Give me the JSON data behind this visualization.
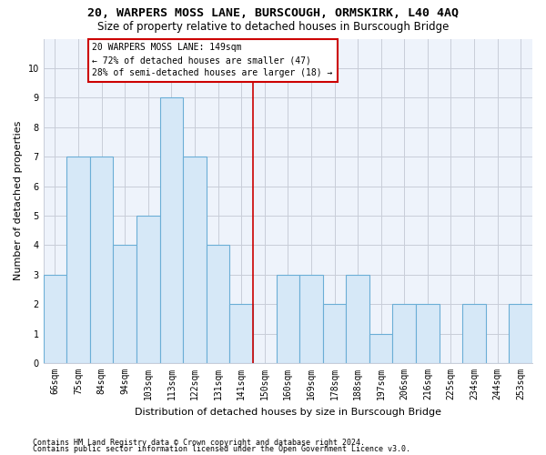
{
  "title": "20, WARPERS MOSS LANE, BURSCOUGH, ORMSKIRK, L40 4AQ",
  "subtitle": "Size of property relative to detached houses in Burscough Bridge",
  "xlabel": "Distribution of detached houses by size in Burscough Bridge",
  "ylabel": "Number of detached properties",
  "footer1": "Contains HM Land Registry data © Crown copyright and database right 2024.",
  "footer2": "Contains public sector information licensed under the Open Government Licence v3.0.",
  "categories": [
    "66sqm",
    "75sqm",
    "84sqm",
    "94sqm",
    "103sqm",
    "113sqm",
    "122sqm",
    "131sqm",
    "141sqm",
    "150sqm",
    "160sqm",
    "169sqm",
    "178sqm",
    "188sqm",
    "197sqm",
    "206sqm",
    "216sqm",
    "225sqm",
    "234sqm",
    "244sqm",
    "253sqm"
  ],
  "values": [
    3,
    7,
    7,
    4,
    5,
    9,
    7,
    4,
    2,
    0,
    3,
    3,
    2,
    3,
    1,
    2,
    2,
    0,
    2,
    0,
    2
  ],
  "bar_color": "#d6e8f7",
  "bar_edge_color": "#6baed6",
  "grid_color": "#c8cdd8",
  "annotation_text": "20 WARPERS MOSS LANE: 149sqm\n← 72% of detached houses are smaller (47)\n28% of semi-detached houses are larger (18) →",
  "annotation_box_color": "#ffffff",
  "annotation_box_edge": "#cc0000",
  "vline_x_idx": 9,
  "vline_color": "#cc0000",
  "ylim": [
    0,
    11
  ],
  "yticks": [
    0,
    1,
    2,
    3,
    4,
    5,
    6,
    7,
    8,
    9,
    10,
    11
  ],
  "fig_bg": "#ffffff",
  "plot_bg": "#eef3fb",
  "title_fontsize": 9.5,
  "subtitle_fontsize": 8.5,
  "ylabel_fontsize": 8,
  "xlabel_fontsize": 8,
  "tick_fontsize": 7,
  "annot_fontsize": 7,
  "footer_fontsize": 6
}
